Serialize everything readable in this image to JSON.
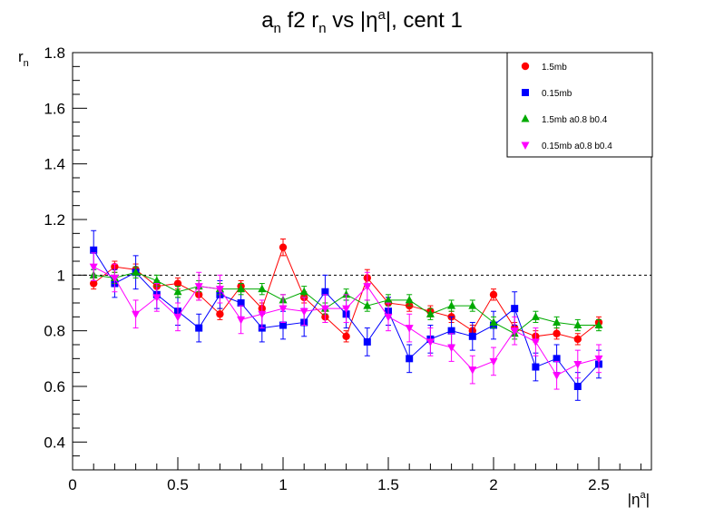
{
  "title": "a_n f2 r_n vs |η^a|, cent 1",
  "title_parts": {
    "a": "a",
    "a_sub": "n",
    "mid": " f2 r",
    "r_sub": "n",
    "vs": " vs |η",
    "eta_sup": "a",
    "tail": "|, cent 1"
  },
  "ylabel_parts": {
    "r": "r",
    "r_sub": "n"
  },
  "xlabel_parts": {
    "eta": "|η",
    "eta_sup": "a",
    "bar": "|"
  },
  "chart_data": {
    "type": "scatter",
    "title": "a_n f2 r_n vs |η^a|, cent 1",
    "xlabel": "|η^a|",
    "ylabel": "r_n",
    "xlim": [
      0,
      2.75
    ],
    "ylim": [
      0.3,
      1.8
    ],
    "xticks": [
      0,
      0.5,
      1,
      1.5,
      2,
      2.5
    ],
    "xtick_labels": [
      "0",
      "0.5",
      "1",
      "1.5",
      "2",
      "2.5"
    ],
    "yticks": [
      0.4,
      0.6,
      0.8,
      1.0,
      1.2,
      1.4,
      1.6,
      1.8
    ],
    "ytick_labels": [
      "0.4",
      "0.6",
      "0.8",
      "1",
      "1.2",
      "1.4",
      "1.6",
      "1.8"
    ],
    "reference_line": 1.0,
    "grid": false,
    "legend_position": "top-right",
    "x": [
      0.1,
      0.2,
      0.3,
      0.4,
      0.5,
      0.6,
      0.7,
      0.8,
      0.9,
      1.0,
      1.1,
      1.2,
      1.3,
      1.4,
      1.5,
      1.6,
      1.7,
      1.8,
      1.9,
      2.0,
      2.1,
      2.2,
      2.3,
      2.4,
      2.5
    ],
    "series": [
      {
        "name": "1.5mb",
        "marker": "circle",
        "color": "#ff0000",
        "values": [
          0.97,
          1.03,
          1.02,
          0.96,
          0.97,
          0.93,
          0.86,
          0.96,
          0.88,
          1.1,
          0.92,
          0.85,
          0.78,
          0.99,
          0.9,
          0.89,
          0.87,
          0.85,
          0.8,
          0.93,
          0.81,
          0.78,
          0.79,
          0.77,
          0.83
        ],
        "errors": [
          0.02,
          0.02,
          0.02,
          0.02,
          0.02,
          0.02,
          0.02,
          0.02,
          0.02,
          0.03,
          0.02,
          0.02,
          0.02,
          0.03,
          0.02,
          0.02,
          0.02,
          0.02,
          0.02,
          0.02,
          0.02,
          0.02,
          0.02,
          0.02,
          0.02
        ]
      },
      {
        "name": "0.15mb",
        "marker": "square",
        "color": "#0000ff",
        "values": [
          1.09,
          0.97,
          1.01,
          0.93,
          0.87,
          0.81,
          0.93,
          0.9,
          0.81,
          0.82,
          0.83,
          0.94,
          0.86,
          0.76,
          0.87,
          0.7,
          0.77,
          0.8,
          0.78,
          0.82,
          0.88,
          0.67,
          0.7,
          0.6,
          0.68
        ],
        "errors": [
          0.07,
          0.05,
          0.06,
          0.05,
          0.05,
          0.05,
          0.05,
          0.05,
          0.05,
          0.05,
          0.05,
          0.06,
          0.05,
          0.05,
          0.05,
          0.05,
          0.05,
          0.05,
          0.05,
          0.05,
          0.06,
          0.05,
          0.05,
          0.05,
          0.05
        ]
      },
      {
        "name": "1.5mb a0.8 b0.4",
        "marker": "triangle-up",
        "color": "#00aa00",
        "values": [
          1.0,
          0.99,
          1.01,
          0.98,
          0.94,
          0.96,
          0.95,
          0.95,
          0.95,
          0.91,
          0.94,
          0.88,
          0.93,
          0.89,
          0.91,
          0.91,
          0.86,
          0.89,
          0.89,
          0.83,
          0.79,
          0.85,
          0.83,
          0.82,
          0.82
        ],
        "errors": [
          0.02,
          0.02,
          0.02,
          0.02,
          0.02,
          0.02,
          0.02,
          0.02,
          0.02,
          0.02,
          0.02,
          0.02,
          0.02,
          0.02,
          0.02,
          0.02,
          0.02,
          0.02,
          0.02,
          0.02,
          0.02,
          0.02,
          0.02,
          0.02,
          0.02
        ]
      },
      {
        "name": "0.15mb a0.8 b0.4",
        "marker": "triangle-down",
        "color": "#ff00ff",
        "values": [
          1.03,
          0.99,
          0.86,
          0.92,
          0.85,
          0.96,
          0.95,
          0.84,
          0.86,
          0.88,
          0.87,
          0.88,
          0.88,
          0.96,
          0.85,
          0.81,
          0.76,
          0.74,
          0.66,
          0.69,
          0.8,
          0.76,
          0.64,
          0.68,
          0.7
        ],
        "errors": [
          0.05,
          0.05,
          0.05,
          0.05,
          0.05,
          0.05,
          0.05,
          0.05,
          0.05,
          0.05,
          0.05,
          0.05,
          0.05,
          0.05,
          0.05,
          0.05,
          0.05,
          0.05,
          0.05,
          0.05,
          0.05,
          0.05,
          0.05,
          0.05,
          0.05
        ]
      }
    ]
  }
}
